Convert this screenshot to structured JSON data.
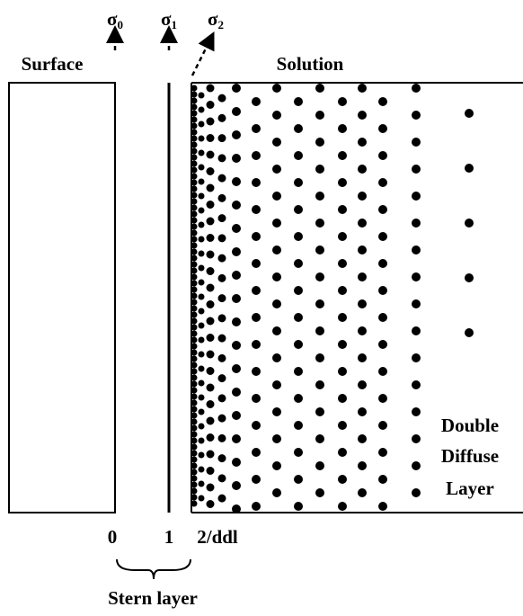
{
  "labels": {
    "sigma0": {
      "base": "σ",
      "sub": "0"
    },
    "sigma1": {
      "base": "σ",
      "sub": "1"
    },
    "sigma2": {
      "base": "σ",
      "sub": "2"
    },
    "surface": "Surface",
    "solution": "Solution",
    "plane0": "0",
    "plane1": "1",
    "plane2": "2/ddl",
    "stern": "Stern layer",
    "ddl": [
      "Double",
      "Diffuse",
      "Layer"
    ]
  }
}
